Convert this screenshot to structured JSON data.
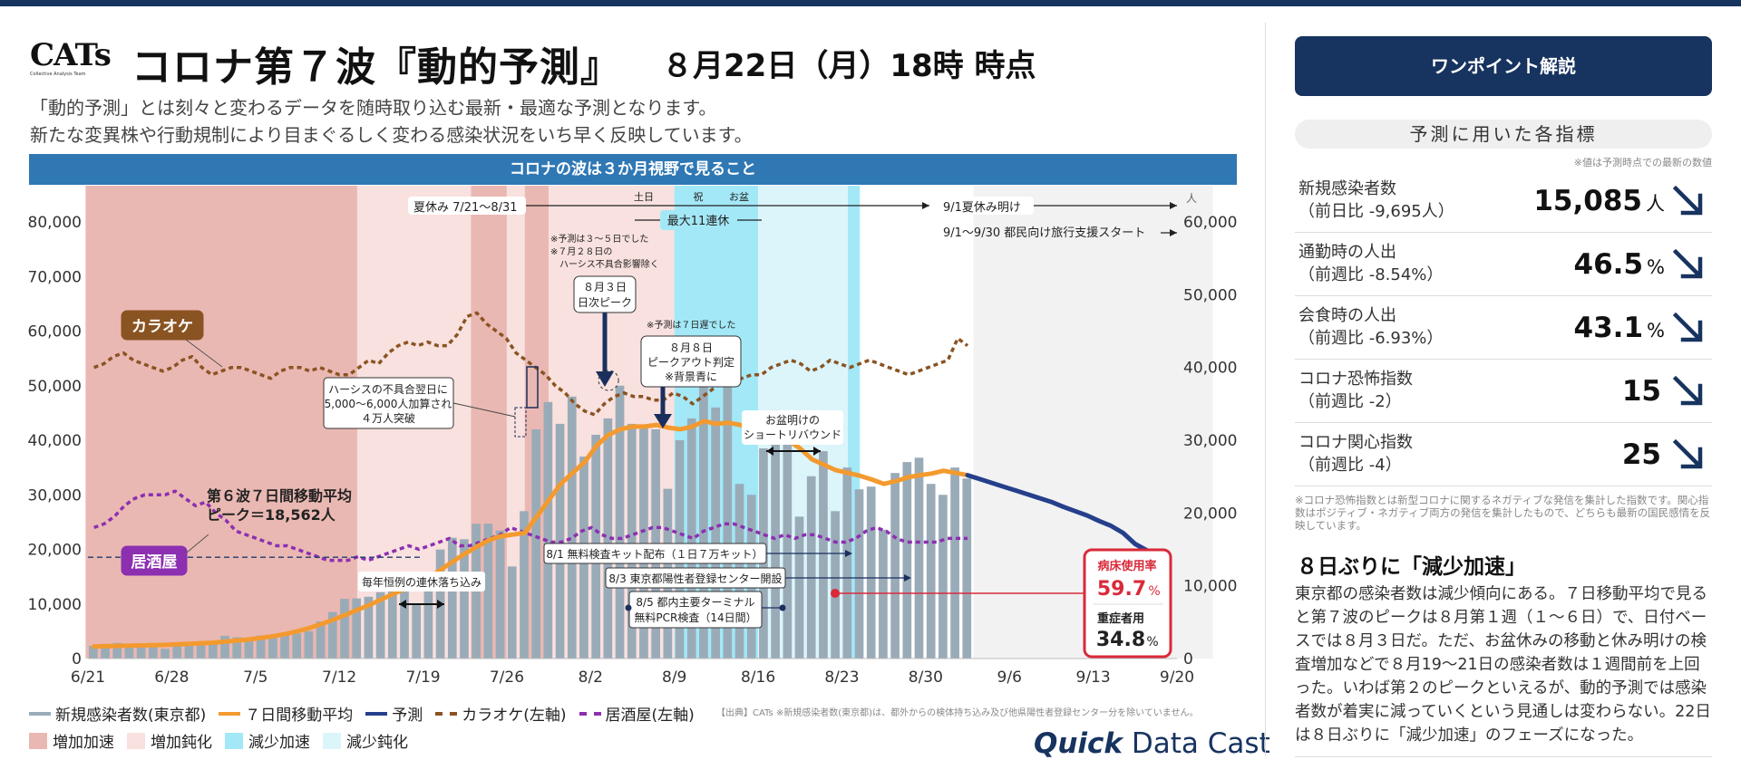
{
  "header": {
    "logo": "CATs",
    "logo_sub": "Collective Analysis Team",
    "title": "コロナ第７波『動的予測』",
    "as_of": "８月22日（月）18時 時点",
    "desc1": "「動的予測」とは刻々と変わるデータを随時取り込む最新・最適な予測となります。",
    "desc2": "新たな変異株や行動規制により目まぐるしく変わる感染状況をいち早く反映しています。",
    "banner": "コロナの波は３か月視野で見ること"
  },
  "colors": {
    "bar": "#9aabb8",
    "ma": "#f39a2f",
    "forecast": "#253f8c",
    "karaoke": "#8a5322",
    "izakaya": "#8c2fb1",
    "inc_accel": "#eab8b2",
    "inc_slow": "#f8e1de",
    "dec_accel": "#a3e8f7",
    "dec_slow": "#dcf5fb",
    "future": "#f2f2f2"
  },
  "chart_data": {
    "type": "bar",
    "x_start": "6/21",
    "x_ticks": [
      "6/21",
      "6/28",
      "7/5",
      "7/12",
      "7/19",
      "7/26",
      "8/2",
      "8/9",
      "8/16",
      "8/23",
      "8/30",
      "9/6",
      "9/13",
      "9/20"
    ],
    "y_left": {
      "ticks": [
        "0",
        "10,000",
        "20,000",
        "30,000",
        "40,000",
        "50,000",
        "60,000",
        "70,000",
        "80,000"
      ],
      "range": [
        0,
        80000
      ]
    },
    "y_right": {
      "ticks": [
        "0",
        "10,000",
        "20,000",
        "30,000",
        "40,000",
        "50,000",
        "60,000"
      ],
      "range": [
        0,
        60000
      ],
      "unit": "人"
    },
    "series": [
      {
        "name": "新規感染者数(東京都)",
        "kind": "bar",
        "values": [
          2277,
          2684,
          2860,
          2651,
          2517,
          2308,
          1780,
          2460,
          2773,
          3011,
          2765,
          4165,
          3905,
          3794,
          4209,
          4240,
          4335,
          4593,
          5010,
          6777,
          8528,
          10941,
          11015,
          11317,
          12155,
          12618,
          12380,
          9860,
          15097,
          19981,
          22128,
          21856,
          24702,
          24715,
          23462,
          16872,
          27002,
          42000,
          47000,
          43000,
          48000,
          37000,
          41000,
          44000,
          50000,
          43000,
          42500,
          42000,
          31100,
          40000,
          44000,
          52000,
          46000,
          50000,
          32000,
          30000,
          38500,
          45500,
          42500,
          26000,
          33400,
          38000,
          27000,
          35000,
          31000,
          31500,
          23600,
          34000,
          36000,
          36800,
          32000,
          30000,
          35000,
          33000
        ]
      },
      {
        "name": "７日間移動平均",
        "kind": "line",
        "values": [
          2200,
          2250,
          2300,
          2350,
          2400,
          2450,
          2500,
          2600,
          2700,
          2800,
          2900,
          3100,
          3300,
          3500,
          3800,
          4100,
          4500,
          5000,
          5600,
          6300,
          7100,
          8000,
          8900,
          9800,
          10800,
          11800,
          12800,
          13500,
          14800,
          16300,
          17800,
          19200,
          20500,
          21700,
          22400,
          22700,
          23000,
          26000,
          29000,
          32000,
          34000,
          36000,
          39000,
          41000,
          42000,
          42500,
          42500,
          42800,
          42300,
          42000,
          42500,
          43500,
          43000,
          43200,
          42800,
          42000,
          41500,
          41000,
          40000,
          38500,
          36500,
          35500,
          34500,
          34000,
          33500,
          32800,
          32000,
          32500,
          33200,
          33600,
          33900,
          34400,
          34000,
          33600
        ]
      },
      {
        "name": "予測",
        "kind": "line",
        "x_from": 73,
        "values": [
          33600,
          32900,
          32200,
          31500,
          30800,
          30100,
          29400,
          28700,
          27800,
          27000,
          26200,
          25200,
          24300,
          23000,
          21000,
          19800,
          19300
        ]
      },
      {
        "name": "カラオケ(左軸)",
        "axis": "right",
        "kind": "line",
        "values": [
          40000,
          40500,
          41500,
          42000,
          41000,
          40500,
          40000,
          39500,
          40000,
          41000,
          41500,
          40000,
          39000,
          39500,
          40000,
          40000,
          39500,
          39000,
          38500,
          39500,
          40000,
          40000,
          39500,
          40000,
          39500,
          39000,
          39000,
          40000,
          41000,
          40500,
          42000,
          43000,
          43500,
          43000,
          43500,
          43000,
          43000,
          44500,
          47000,
          47500,
          46000,
          45000,
          44000,
          42000,
          41000,
          40000,
          39000,
          37500,
          36500,
          35000,
          34000,
          33500,
          35000,
          36000,
          36500,
          36000,
          36000,
          35500,
          35500,
          36500,
          36000,
          35000,
          36000,
          37000,
          38000,
          38500,
          38500,
          39000,
          39000,
          40000,
          40500,
          41000,
          40500,
          39500,
          40000,
          41000,
          40500,
          40000,
          40500,
          41000,
          40500,
          40000,
          39500,
          39000,
          39500,
          40000,
          40500,
          41000,
          44000,
          43000
        ]
      },
      {
        "name": "居酒屋(左軸)",
        "axis": "right",
        "kind": "line",
        "values": [
          18000,
          18500,
          19500,
          21000,
          22000,
          22500,
          22500,
          22500,
          23000,
          22000,
          21000,
          21500,
          20000,
          19000,
          17500,
          17000,
          16500,
          16000,
          15500,
          15500,
          15000,
          14500,
          14000,
          13500,
          13500,
          13500,
          14000,
          13500,
          14000,
          14500,
          15000,
          15500,
          15000,
          15500,
          16000,
          16500,
          15500,
          15500,
          16000,
          16500,
          17000,
          18000,
          17500,
          17000,
          16500,
          16000,
          16000,
          16500,
          17500,
          18000,
          17000,
          16500,
          16500,
          17000,
          17500,
          18000,
          18000,
          17500,
          17000,
          16500,
          17500,
          18000,
          18500,
          18500,
          18000,
          17500,
          17000,
          16500,
          17000,
          16500,
          17000,
          17000,
          16500,
          16000,
          16000,
          16500,
          17500,
          18000,
          17500,
          16500,
          16000,
          16000,
          16000,
          16000,
          16500,
          16500,
          16500
        ]
      }
    ],
    "phases": [
      {
        "name": "増加加速",
        "from": -0.2,
        "to": 22.5
      },
      {
        "name": "増加鈍化",
        "from": 22.5,
        "to": 32
      },
      {
        "name": "増加加速",
        "from": 32,
        "to": 35
      },
      {
        "name": "増加鈍化",
        "from": 35,
        "to": 36.5
      },
      {
        "name": "増加加速",
        "from": 36.5,
        "to": 38.5
      },
      {
        "name": "増加鈍化",
        "from": 38.5,
        "to": 49
      },
      {
        "name": "減少加速",
        "from": 49,
        "to": 56
      },
      {
        "name": "減少鈍化",
        "from": 56,
        "to": 63.5
      },
      {
        "name": "減少加速",
        "from": 63.5,
        "to": 64.5
      },
      {
        "name": "未来",
        "from": 74,
        "to": 94
      }
    ],
    "ref_line": {
      "value": 18562,
      "label1": "第６波７日間移動平均",
      "label2": "ピーク＝18,562人"
    },
    "annotations": {
      "karaoke": "カラオケ",
      "izakaya": "居酒屋",
      "summer": "夏休み 7/21～8/31",
      "summer_end": "9/1夏休み明け",
      "travel": "9/1～9/30 都民向け旅行支援スタート",
      "day_sat": "土日",
      "day_hol": "祝",
      "day_obon": "お盆",
      "holiday11": "最大11連休",
      "note_predict1": "※予測は３～５日でした",
      "note_predict2": "※７月２８日の",
      "note_predict3": "ハーシス不具合影響除く",
      "peak1": "８月３日",
      "peak2": "日次ピーク",
      "note7": "※予測は７日遅でした",
      "peakout1": "８月８日",
      "peakout2": "ピークアウト判定",
      "peakout3": "※背景青に",
      "hers1": "ハーシスの不具合翌日に",
      "hers2": "5,000～6,000人加算され",
      "hers3": "４万人突破",
      "obon1": "お盆明けの",
      "obon2": "ショートリバウンド",
      "holiday_drop": "毎年恒例の連休落ち込み",
      "kit": "8/1 無料検査キット配布（１日７万キット）",
      "center": "8/3 東京都陽性者登録センター開設",
      "terminal1": "8/5 都内主要ターミナル",
      "terminal2": "無料PCR検査（14日間）",
      "bed_label": "病床使用率",
      "bed_value": "59.7",
      "severe_label": "重症者用",
      "severe_value": "34.8",
      "pct": "%"
    }
  },
  "legend": {
    "row1": [
      "新規感染者数(東京都)",
      "７日間移動平均",
      "予測",
      "カラオケ(左軸)",
      "居酒屋(左軸)"
    ],
    "row2": [
      "増加加速",
      "増加鈍化",
      "減少加速",
      "減少鈍化"
    ]
  },
  "source": "【出典】CATs ※新規感染者数(東京都)は、都外からの検体持ち込み及び他県陽性者登録センター分を除いていません。",
  "brand": {
    "quick": "Quick",
    "rest": " Data Cast"
  },
  "panel": {
    "button": "ワンポイント解説",
    "subtitle": "予測に用いた各指標",
    "note": "※値は予測時点での最新の数値",
    "indicators": [
      {
        "name": "新規感染者数",
        "sub": "（前日比 -9,695人）",
        "value": "15,085",
        "unit": "人",
        "arrow": "down-right-arrow"
      },
      {
        "name": "通勤時の人出",
        "sub": "（前週比 -8.54%）",
        "value": "46.5",
        "unit": "%",
        "arrow": "down-right-arrow"
      },
      {
        "name": "会食時の人出",
        "sub": "（前週比 -6.93%）",
        "value": "43.1",
        "unit": "%",
        "arrow": "down-right-arrow"
      },
      {
        "name": "コロナ恐怖指数",
        "sub": "（前週比 -2）",
        "value": "15",
        "unit": "",
        "arrow": "down-right-arrow"
      },
      {
        "name": "コロナ関心指数",
        "sub": "（前週比 -4）",
        "value": "25",
        "unit": "",
        "arrow": "down-right-arrow"
      }
    ],
    "footnote": "※コロナ恐怖指数とは新型コロナに関するネガティブな発信を集計した指数です。関心指数はポジティブ・ネガティブ両方の発信を集計したもので、どちらも最新の国民感情を反映しています。",
    "headline": "８日ぶりに「減少加速」",
    "body": "東京都の感染者数は減少傾向にある。７日移動平均で見ると第７波のピークは８月第１週（１～６日）で、日付ベースでは８月３日だ。ただ、お盆休みの移動と休み明けの検査増加などで８月19～21日の感染者数は１週間前を上回った。いわば第２のピークといえるが、動的予測では感染者数が着実に減っていくという見通しは変わらない。22日は８日ぶりに「減少加速」のフェーズになった。"
  }
}
